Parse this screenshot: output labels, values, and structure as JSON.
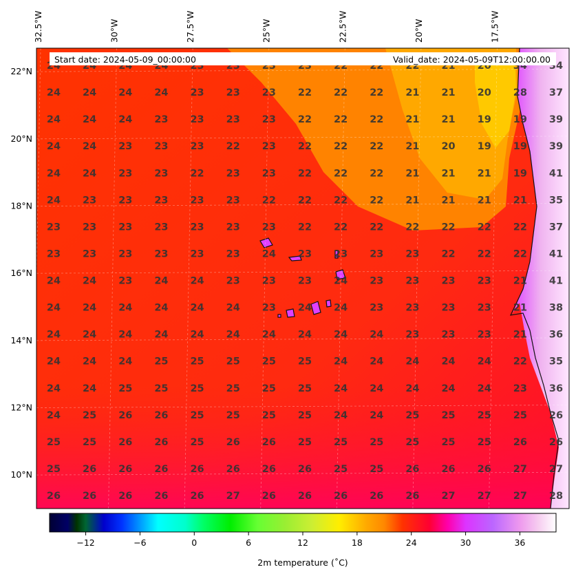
{
  "header": {
    "start_date": "Start date: 2024-05-09_00:00:00",
    "valid_date": "Valid_date: 2024-05-09T12:00:00.00"
  },
  "map": {
    "lon_labels": [
      "32.5°W",
      "30°W",
      "27.5°W",
      "25°W",
      "22.5°W",
      "20°W",
      "17.5°W"
    ],
    "lat_labels": [
      "22°N",
      "20°N",
      "18°N",
      "16°N",
      "14°N",
      "12°N",
      "10°N"
    ],
    "lon_range": [
      -32.5,
      -15.0
    ],
    "lat_range": [
      9.0,
      22.7
    ]
  },
  "grid_values": {
    "lat_rows": [
      22.2,
      21.5,
      20.7,
      19.9,
      19.2,
      18.4,
      17.6,
      16.9,
      16.1,
      15.3,
      14.5,
      13.8,
      13.0,
      12.2,
      11.4,
      10.7,
      9.9
    ],
    "rows": [
      [
        "24",
        "24",
        "24",
        "24",
        "23",
        "23",
        "23",
        "23",
        "22",
        "22",
        "22",
        "21",
        "20",
        "34",
        "34"
      ],
      [
        "24",
        "24",
        "24",
        "24",
        "23",
        "23",
        "23",
        "22",
        "22",
        "22",
        "21",
        "21",
        "20",
        "28",
        "37"
      ],
      [
        "24",
        "24",
        "24",
        "23",
        "23",
        "23",
        "23",
        "22",
        "22",
        "22",
        "21",
        "21",
        "19",
        "19",
        "39"
      ],
      [
        "24",
        "24",
        "23",
        "23",
        "23",
        "22",
        "23",
        "22",
        "22",
        "22",
        "21",
        "20",
        "19",
        "19",
        "39"
      ],
      [
        "24",
        "24",
        "23",
        "23",
        "22",
        "23",
        "23",
        "22",
        "22",
        "22",
        "21",
        "21",
        "21",
        "19",
        "41"
      ],
      [
        "24",
        "23",
        "23",
        "23",
        "23",
        "23",
        "22",
        "22",
        "22",
        "22",
        "21",
        "21",
        "21",
        "21",
        "35"
      ],
      [
        "23",
        "23",
        "23",
        "23",
        "23",
        "23",
        "23",
        "22",
        "22",
        "22",
        "22",
        "22",
        "22",
        "22",
        "37"
      ],
      [
        "23",
        "23",
        "23",
        "23",
        "23",
        "23",
        "24",
        "23",
        "23",
        "23",
        "23",
        "22",
        "22",
        "22",
        "41"
      ],
      [
        "24",
        "24",
        "23",
        "24",
        "24",
        "23",
        "23",
        "23",
        "24",
        "23",
        "23",
        "23",
        "23",
        "21",
        "41"
      ],
      [
        "24",
        "24",
        "24",
        "24",
        "24",
        "24",
        "23",
        "24",
        "24",
        "23",
        "23",
        "23",
        "23",
        "21",
        "38"
      ],
      [
        "24",
        "24",
        "24",
        "24",
        "24",
        "24",
        "24",
        "24",
        "24",
        "24",
        "23",
        "23",
        "23",
        "21",
        "36"
      ],
      [
        "24",
        "24",
        "24",
        "25",
        "25",
        "25",
        "25",
        "25",
        "24",
        "24",
        "24",
        "24",
        "24",
        "22",
        "35"
      ],
      [
        "24",
        "24",
        "25",
        "25",
        "25",
        "25",
        "25",
        "25",
        "24",
        "24",
        "24",
        "24",
        "24",
        "23",
        "36"
      ],
      [
        "24",
        "25",
        "26",
        "26",
        "25",
        "25",
        "25",
        "25",
        "24",
        "24",
        "25",
        "25",
        "25",
        "25",
        "26"
      ],
      [
        "25",
        "25",
        "26",
        "26",
        "25",
        "26",
        "26",
        "25",
        "25",
        "25",
        "25",
        "25",
        "25",
        "26",
        "26"
      ],
      [
        "25",
        "26",
        "26",
        "26",
        "26",
        "26",
        "26",
        "26",
        "25",
        "25",
        "26",
        "26",
        "26",
        "27",
        "27"
      ],
      [
        "26",
        "26",
        "26",
        "26",
        "26",
        "27",
        "26",
        "26",
        "26",
        "26",
        "26",
        "27",
        "27",
        "27",
        "28"
      ]
    ]
  },
  "colorbar": {
    "label": "2m temperature ($^\\circ$C)",
    "label_display": "2m temperature (˚C)",
    "range": [
      -16,
      40
    ],
    "ticks": [
      "−12",
      "−6",
      "0",
      "6",
      "12",
      "18",
      "24",
      "30",
      "36"
    ],
    "tick_values": [
      -12,
      -6,
      0,
      6,
      12,
      18,
      24,
      30,
      36
    ],
    "colormap_stops": [
      {
        "v": -16,
        "c": "#000033"
      },
      {
        "v": -14,
        "c": "#000066"
      },
      {
        "v": -13,
        "c": "#003300"
      },
      {
        "v": -12,
        "c": "#006633"
      },
      {
        "v": -10,
        "c": "#0000cc"
      },
      {
        "v": -8,
        "c": "#0033ff"
      },
      {
        "v": -6,
        "c": "#0099ff"
      },
      {
        "v": -4,
        "c": "#00ffff"
      },
      {
        "v": -1,
        "c": "#00ffcc"
      },
      {
        "v": 1,
        "c": "#00ff66"
      },
      {
        "v": 4,
        "c": "#00ee00"
      },
      {
        "v": 7,
        "c": "#66ff33"
      },
      {
        "v": 10,
        "c": "#99ee33"
      },
      {
        "v": 13,
        "c": "#ccee33"
      },
      {
        "v": 16,
        "c": "#ffee00"
      },
      {
        "v": 19,
        "c": "#ffaa00"
      },
      {
        "v": 21,
        "c": "#ff8800"
      },
      {
        "v": 23,
        "c": "#ff3300"
      },
      {
        "v": 26,
        "c": "#ff0033"
      },
      {
        "v": 28,
        "c": "#ff00aa"
      },
      {
        "v": 30,
        "c": "#dd33ff"
      },
      {
        "v": 33,
        "c": "#bb66ff"
      },
      {
        "v": 36,
        "c": "#ee99ee"
      },
      {
        "v": 38,
        "c": "#f6ccf0"
      },
      {
        "v": 40,
        "c": "#ffffff"
      }
    ]
  }
}
